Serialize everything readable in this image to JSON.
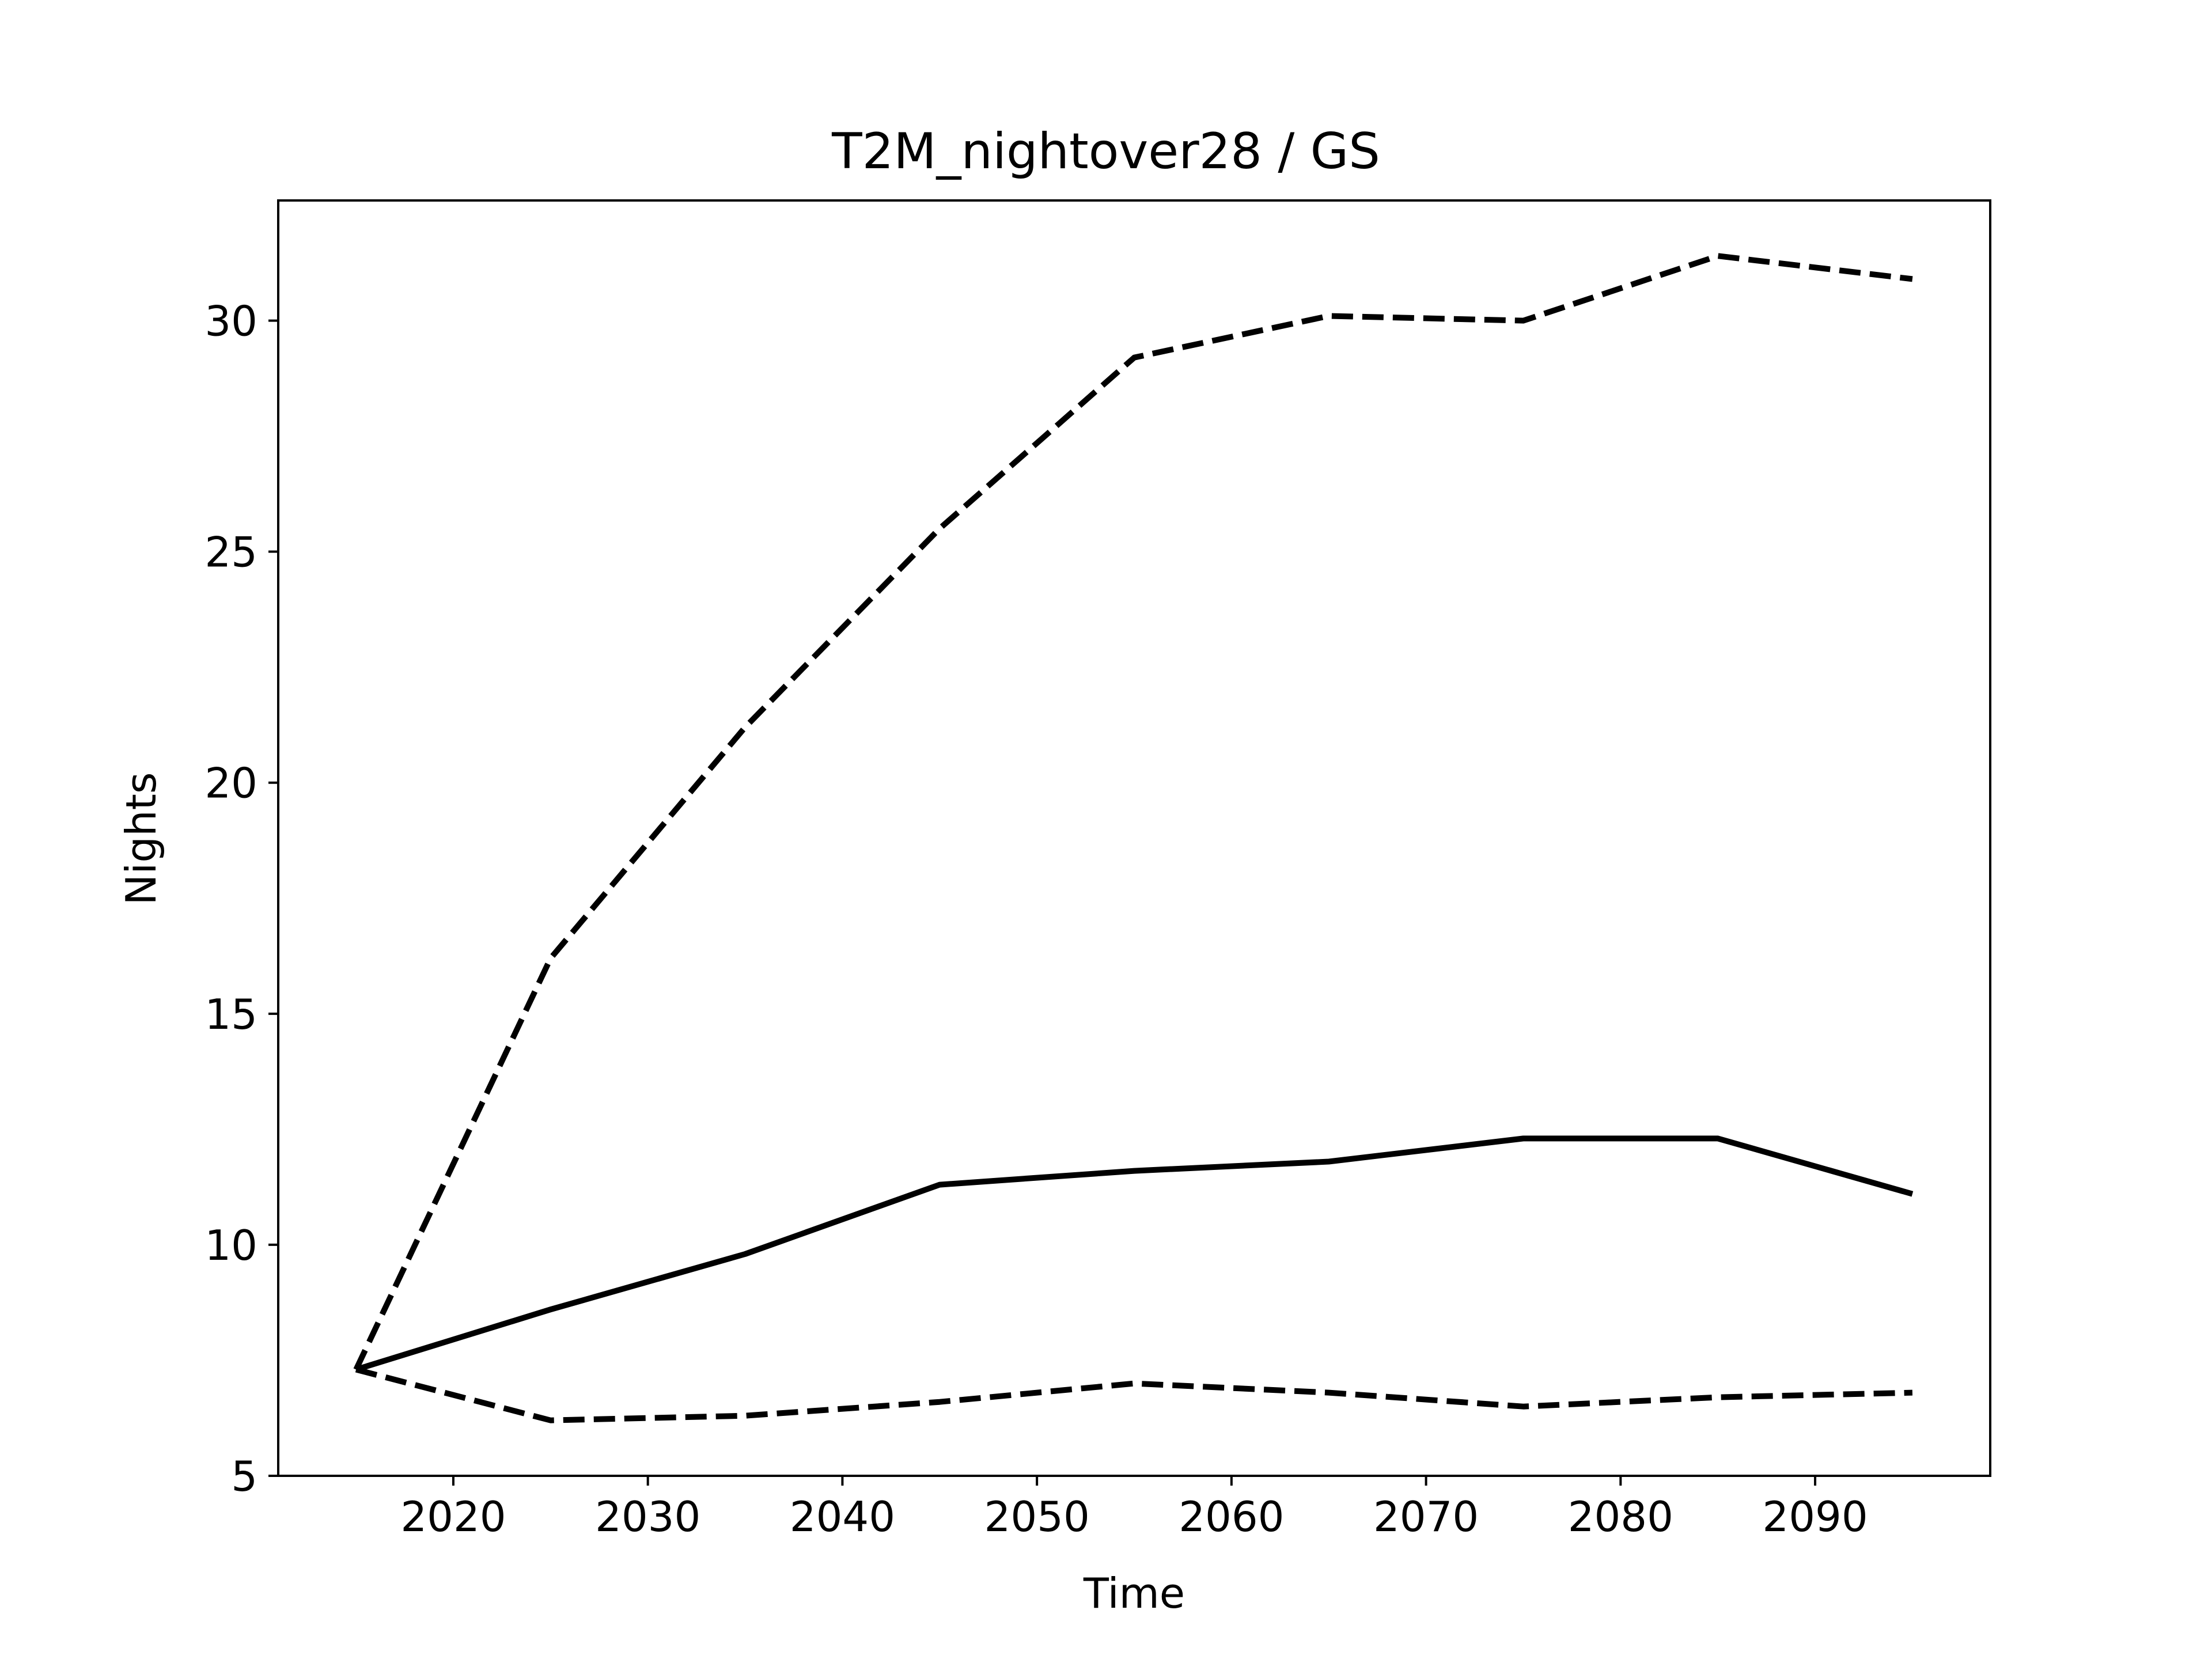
{
  "chart_data": {
    "type": "line",
    "title": "T2M_nightover28 / GS",
    "xlabel": "Time",
    "ylabel": "Nights",
    "xlim": [
      2011,
      2099
    ],
    "ylim": [
      5,
      32.6
    ],
    "xticks": [
      2020,
      2030,
      2040,
      2050,
      2060,
      2070,
      2080,
      2090
    ],
    "yticks": [
      5,
      10,
      15,
      20,
      25,
      30
    ],
    "x": [
      2015,
      2025,
      2035,
      2045,
      2055,
      2065,
      2075,
      2085,
      2095
    ],
    "grid": false,
    "legend": "none",
    "series": [
      {
        "style": "dashed",
        "color": "#000000",
        "values": [
          7.3,
          16.2,
          21.2,
          25.5,
          29.2,
          30.1,
          30.0,
          31.4,
          30.9
        ]
      },
      {
        "style": "solid",
        "color": "#000000",
        "values": [
          7.3,
          8.6,
          9.8,
          11.3,
          11.6,
          11.8,
          12.3,
          12.3,
          11.1
        ]
      },
      {
        "style": "dashed",
        "color": "#000000",
        "values": [
          7.3,
          6.2,
          6.3,
          6.6,
          7.0,
          6.8,
          6.5,
          6.7,
          6.8
        ]
      }
    ]
  }
}
